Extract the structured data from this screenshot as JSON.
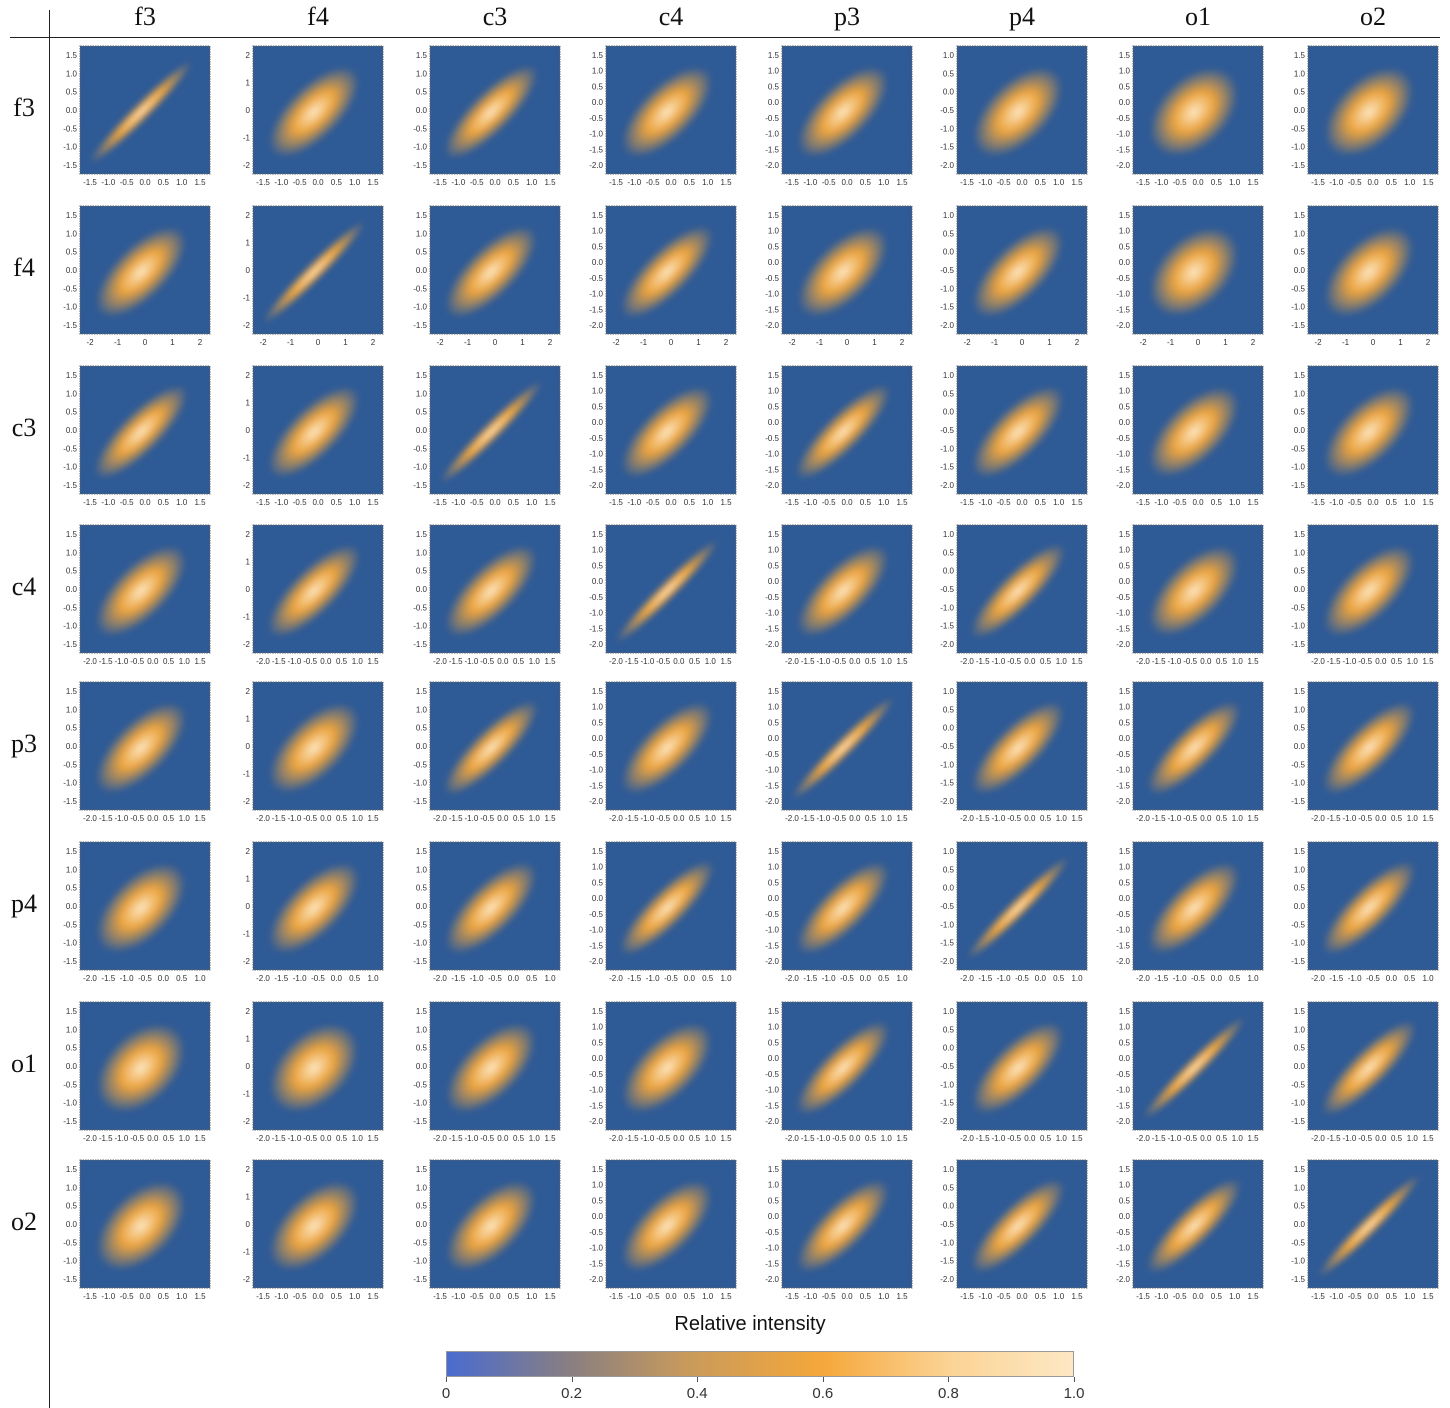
{
  "variables": [
    "f3",
    "f4",
    "c3",
    "c4",
    "p3",
    "p4",
    "o1",
    "o2"
  ],
  "colors": {
    "low": "#4a6bd0",
    "mid": "#f5a73a",
    "high": "#fde8c4",
    "panel_background": "#2e5a96"
  },
  "chart_data": {
    "type": "heatmap",
    "description_kind": "scatter-plot matrix of 2D density heatmaps",
    "rows": [
      "f3",
      "f4",
      "c3",
      "c4",
      "p3",
      "p4",
      "o1",
      "o2"
    ],
    "columns": [
      "f3",
      "f4",
      "c3",
      "c4",
      "p3",
      "p4",
      "o1",
      "o2"
    ],
    "x_tick_sets": {
      "a": [
        "-1.5",
        "-1.0",
        "-0.5",
        "0.0",
        "0.5",
        "1.0",
        "1.5"
      ],
      "b": [
        "-2",
        "-1",
        "0",
        "1",
        "2"
      ],
      "c": [
        "-2.0",
        "-1.5",
        "-1.0",
        "-0.5",
        "0.0",
        "0.5",
        "1.0",
        "1.5"
      ],
      "d": [
        "-2.0",
        "-1.5",
        "-1.0",
        "-0.5",
        "0.0",
        "0.5",
        "1.0"
      ]
    },
    "y_tick_sets": {
      "a": [
        "1.5",
        "1.0",
        "0.5",
        "0.0",
        "-0.5",
        "-1.0",
        "-1.5"
      ],
      "b": [
        "2",
        "1",
        "0",
        "-1",
        "-2"
      ],
      "c": [
        "1.5",
        "1.0",
        "0.5",
        "0.0",
        "-0.5",
        "-1.0",
        "-1.5",
        "-2.0"
      ],
      "d": [
        "1.0",
        "0.5",
        "0.0",
        "-0.5",
        "-1.0",
        "-1.5",
        "-2.0"
      ]
    },
    "row_x_ticks": [
      "a",
      "b",
      "a",
      "c",
      "c",
      "d",
      "c",
      "a"
    ],
    "column_y_ticks": [
      "a",
      "b",
      "a",
      "c",
      "c",
      "d",
      "c",
      "a"
    ],
    "correlation_estimate": [
      [
        1.0,
        0.55,
        0.7,
        0.55,
        0.55,
        0.45,
        0.35,
        0.4
      ],
      [
        0.55,
        1.0,
        0.6,
        0.65,
        0.5,
        0.55,
        0.35,
        0.45
      ],
      [
        0.7,
        0.6,
        1.0,
        0.6,
        0.75,
        0.6,
        0.5,
        0.5
      ],
      [
        0.55,
        0.65,
        0.6,
        1.0,
        0.6,
        0.75,
        0.5,
        0.55
      ],
      [
        0.55,
        0.5,
        0.75,
        0.6,
        1.0,
        0.65,
        0.7,
        0.65
      ],
      [
        0.45,
        0.55,
        0.6,
        0.75,
        0.65,
        1.0,
        0.6,
        0.7
      ],
      [
        0.35,
        0.35,
        0.5,
        0.5,
        0.7,
        0.6,
        1.0,
        0.75
      ],
      [
        0.4,
        0.45,
        0.5,
        0.55,
        0.65,
        0.7,
        0.75,
        1.0
      ]
    ],
    "legend": {
      "title": "Relative intensity",
      "min": 0,
      "max": 1.0,
      "ticks": [
        "0",
        "0.2",
        "0.4",
        "0.6",
        "0.8",
        "1.0"
      ]
    },
    "grid": false
  }
}
